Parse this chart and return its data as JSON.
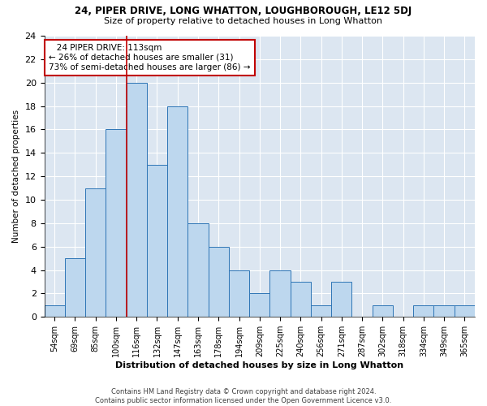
{
  "title1": "24, PIPER DRIVE, LONG WHATTON, LOUGHBOROUGH, LE12 5DJ",
  "title2": "Size of property relative to detached houses in Long Whatton",
  "xlabel": "Distribution of detached houses by size in Long Whatton",
  "ylabel": "Number of detached properties",
  "footer1": "Contains HM Land Registry data © Crown copyright and database right 2024.",
  "footer2": "Contains public sector information licensed under the Open Government Licence v3.0.",
  "categories": [
    "54sqm",
    "69sqm",
    "85sqm",
    "100sqm",
    "116sqm",
    "132sqm",
    "147sqm",
    "163sqm",
    "178sqm",
    "194sqm",
    "209sqm",
    "225sqm",
    "240sqm",
    "256sqm",
    "271sqm",
    "287sqm",
    "302sqm",
    "318sqm",
    "334sqm",
    "349sqm",
    "365sqm"
  ],
  "values": [
    1,
    5,
    11,
    16,
    20,
    13,
    18,
    8,
    6,
    4,
    2,
    4,
    3,
    1,
    3,
    0,
    1,
    0,
    1,
    1,
    1
  ],
  "bar_color": "#bdd7ee",
  "bar_edge_color": "#2e75b6",
  "background_color": "#dce6f1",
  "grid_color": "#ffffff",
  "annotation_line1": "   24 PIPER DRIVE: 113sqm",
  "annotation_line2": "← 26% of detached houses are smaller (31)",
  "annotation_line3": "73% of semi-detached houses are larger (86) →",
  "annotation_box_color": "#ffffff",
  "annotation_box_edge_color": "#c00000",
  "vline_color": "#c00000",
  "ylim": [
    0,
    24
  ],
  "yticks": [
    0,
    2,
    4,
    6,
    8,
    10,
    12,
    14,
    16,
    18,
    20,
    22,
    24
  ],
  "fig_bg_color": "#ffffff"
}
